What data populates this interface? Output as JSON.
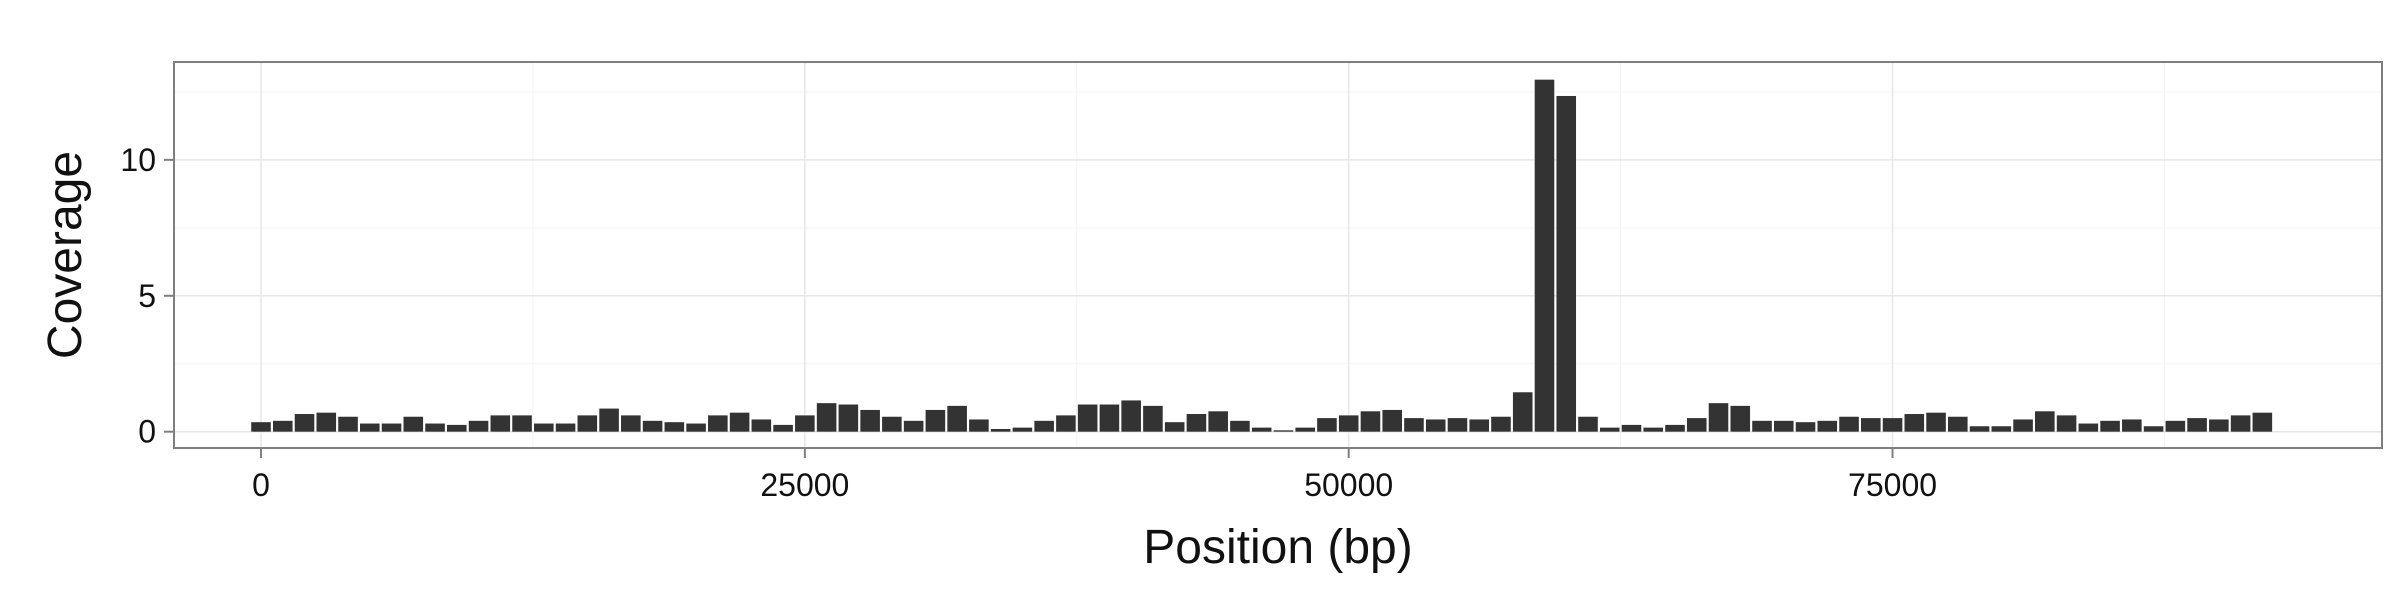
{
  "chart_data": {
    "type": "bar",
    "title": "",
    "xlabel": "Position (bp)",
    "ylabel": "Coverage",
    "xlim": [
      -4000,
      97500
    ],
    "ylim": [
      -0.6,
      13.6
    ],
    "x_ticks": [
      0,
      25000,
      50000,
      75000
    ],
    "x_tick_labels": [
      "0",
      "25000",
      "50000",
      "75000"
    ],
    "y_ticks": [
      0,
      5,
      10
    ],
    "y_tick_labels": [
      "0",
      "5",
      "10"
    ],
    "grid": true,
    "legend": "none",
    "bar_width": 900,
    "colors": {
      "bar": "#333333",
      "panel_border": "#7f7f7f",
      "grid_major": "#e6e6e6",
      "grid_minor": "#f3f3f3"
    },
    "series": [
      {
        "x": [
          0,
          1000,
          2000,
          3000,
          4000,
          5000,
          6000,
          7000,
          8000,
          9000,
          10000,
          11000,
          12000,
          13000,
          14000,
          15000,
          16000,
          17000,
          18000,
          19000,
          20000,
          21000,
          22000,
          23000,
          24000,
          25000,
          26000,
          27000,
          28000,
          29000,
          30000,
          31000,
          32000,
          33000,
          34000,
          35000,
          36000,
          37000,
          38000,
          39000,
          40000,
          41000,
          42000,
          43000,
          44000,
          45000,
          46000,
          47000,
          48000,
          49000,
          50000,
          51000,
          52000,
          53000,
          54000,
          55000,
          56000,
          57000,
          58000,
          59000,
          60000,
          61000,
          62000,
          63000,
          64000,
          65000,
          66000,
          67000,
          68000,
          69000,
          70000,
          71000,
          72000,
          73000,
          74000,
          75000,
          76000,
          77000,
          78000,
          79000,
          80000,
          81000,
          82000,
          83000,
          84000,
          85000,
          86000,
          87000,
          88000,
          89000,
          90000,
          91000,
          92000
        ],
        "values": [
          0.35,
          0.4,
          0.65,
          0.7,
          0.55,
          0.3,
          0.3,
          0.55,
          0.3,
          0.25,
          0.4,
          0.6,
          0.6,
          0.3,
          0.3,
          0.6,
          0.85,
          0.6,
          0.4,
          0.35,
          0.3,
          0.6,
          0.7,
          0.45,
          0.25,
          0.6,
          1.05,
          1.0,
          0.8,
          0.55,
          0.4,
          0.8,
          0.95,
          0.45,
          0.1,
          0.15,
          0.4,
          0.6,
          1.0,
          1.0,
          1.15,
          0.95,
          0.35,
          0.65,
          0.75,
          0.4,
          0.15,
          0.05,
          0.15,
          0.5,
          0.6,
          0.75,
          0.8,
          0.5,
          0.45,
          0.5,
          0.45,
          0.55,
          1.45,
          12.95,
          12.35,
          0.55,
          0.15,
          0.25,
          0.15,
          0.25,
          0.5,
          1.05,
          0.95,
          0.4,
          0.4,
          0.35,
          0.4,
          0.55,
          0.5,
          0.5,
          0.65,
          0.7,
          0.55,
          0.2,
          0.2,
          0.45,
          0.75,
          0.6,
          0.3,
          0.4,
          0.45,
          0.2,
          0.4,
          0.5,
          0.45,
          0.6,
          0.7
        ]
      }
    ]
  }
}
